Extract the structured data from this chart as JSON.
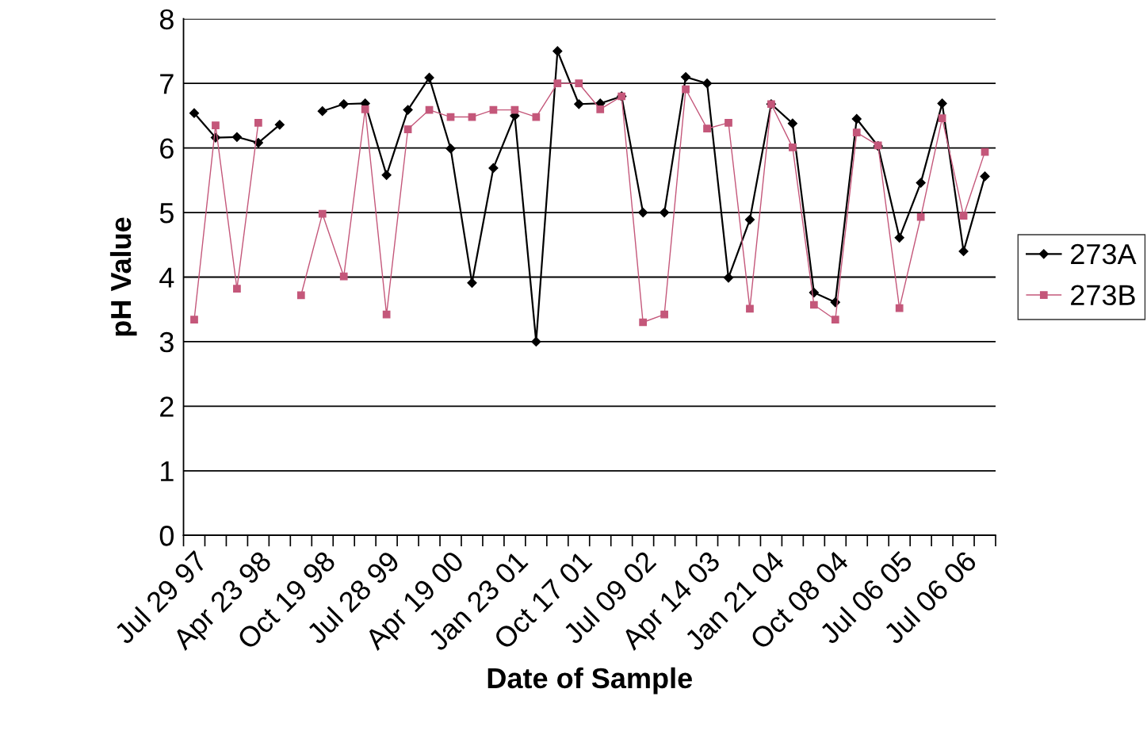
{
  "chart_data": {
    "type": "line",
    "xlabel": "Date of Sample",
    "ylabel": "pH Value",
    "categories": [
      "Jul 29 97",
      null,
      null,
      "Apr 23 98",
      null,
      null,
      "Oct 19 98",
      null,
      null,
      "Jul 28 99",
      null,
      null,
      "Apr 19 00",
      null,
      null,
      "Jan 23 01",
      null,
      null,
      "Oct 17 01",
      null,
      null,
      "Jul 09 02",
      null,
      null,
      "Apr 14 03",
      null,
      null,
      "Jan 21 04",
      null,
      null,
      "Oct 08 04",
      null,
      null,
      "Jul 06 05",
      null,
      null,
      "Jul 06 06",
      null
    ],
    "series": [
      {
        "name": "273A",
        "color": "#000000",
        "marker": "diamond",
        "values": [
          6.54,
          6.16,
          6.17,
          6.08,
          6.36,
          null,
          6.57,
          6.68,
          6.69,
          5.58,
          6.59,
          7.09,
          5.99,
          3.91,
          5.69,
          6.5,
          3.0,
          7.5,
          6.68,
          6.69,
          6.8,
          5.0,
          5.0,
          7.1,
          7.0,
          3.99,
          4.89,
          6.68,
          6.38,
          3.76,
          3.61,
          6.45,
          6.03,
          4.61,
          5.46,
          6.69,
          4.4,
          5.56
        ]
      },
      {
        "name": "273B",
        "color": "#c4577a",
        "marker": "square",
        "values": [
          3.34,
          6.35,
          3.82,
          6.39,
          null,
          3.72,
          4.98,
          4.01,
          6.6,
          3.42,
          6.29,
          6.59,
          6.48,
          6.48,
          6.59,
          6.59,
          6.48,
          7.0,
          7.0,
          6.6,
          6.8,
          3.3,
          3.42,
          6.91,
          6.3,
          6.39,
          3.51,
          6.68,
          6.01,
          3.57,
          3.34,
          6.24,
          6.04,
          3.52,
          4.93,
          6.46,
          4.95,
          5.94
        ]
      }
    ],
    "ylim": [
      0,
      8
    ],
    "yticks": [
      0,
      1,
      2,
      3,
      4,
      5,
      6,
      7,
      8
    ],
    "grid": "y",
    "legend": "right",
    "line_style": "solid"
  }
}
